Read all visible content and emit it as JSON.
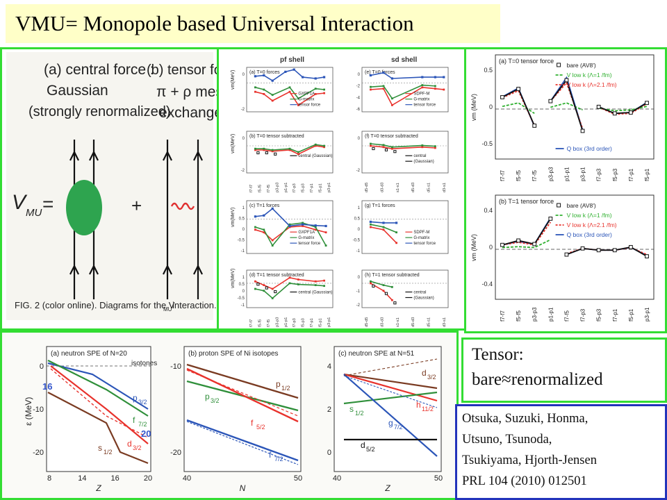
{
  "title": "VMU= Monopole based Universal Interaction",
  "diagram": {
    "label_a": "(a) central force :",
    "label_a2": "Gaussian",
    "label_a3": "(strongly renormalized)",
    "label_b": "(b)  tensor force :",
    "label_b2": "π +  ρ meson",
    "label_b3": "exchange",
    "vmu": "V",
    "vmu_sub": "MU",
    "equals": "=",
    "plus": "+",
    "caption": "FIG. 2 (color online).   Diagrams for the V",
    "caption_sub": "MU",
    "caption_end": " interaction."
  },
  "shell_panel": {
    "col1": "pf shell",
    "col2": "sd shell",
    "ylabel": "v",
    "ylabel_sub": "m",
    "ylabel_unit": "(MeV)",
    "subplots": [
      {
        "label": "(a) T=0 forces",
        "legend": [
          "GXPF1A",
          "G-matrix",
          "tensor force"
        ]
      },
      {
        "label": "(e) T=0 forces",
        "legend": [
          "SDPF-M",
          "G-matrix",
          "tensor force"
        ]
      },
      {
        "label": "(b) T=0 tensor subtracted",
        "legend": [
          "central (Gaussian)"
        ]
      },
      {
        "label": "(f) T=0 tensor subtracted",
        "legend": [
          "central",
          "(Gaussian)"
        ]
      },
      {
        "label": "(c) T=1 forces",
        "legend": [
          "GXPF1A",
          "G-matrix",
          "tensor force"
        ]
      },
      {
        "label": "(g) T=1 forces",
        "legend": [
          "SDPF-M",
          "G-matrix",
          "tensor force"
        ]
      },
      {
        "label": "(d) T=1 tensor subtracted",
        "legend": [
          "central (Gaussian)"
        ]
      },
      {
        "label": "(h) T=1 tensor subtracted",
        "legend": [
          "central",
          "(Gaussian)"
        ]
      }
    ],
    "ticks_a": [
      "0",
      "-2"
    ],
    "ticks_e": [
      "0",
      "-2",
      "-4",
      "-6"
    ],
    "ticks_c": [
      "1",
      "0.5",
      "0",
      "-0.5",
      "-1"
    ],
    "ticks_g": [
      "0",
      "-1",
      "-2"
    ],
    "xlabels_pf": [
      "f7-f7",
      "f5-f5",
      "f7-f5",
      "p3-p3",
      "p1-p1",
      "f7-p3",
      "f5-p3",
      "f7-p1",
      "f5-p1",
      "p3-p1"
    ],
    "xlabels_sd": [
      "d5-d5",
      "d3-d3",
      "s1-s1",
      "d5-d3",
      "d5-s1",
      "d3-s1"
    ]
  },
  "tensor_panel": {
    "top_label": "(a) T=0 tensor force",
    "bottom_label": "(b) T=1 tensor force",
    "ylabel": "v",
    "ylabel_sub": "m",
    "ylabel_unit": "(MeV)",
    "ylabel_unit_b": "(MeV)",
    "legend": [
      "bare (AV8')",
      "V",
      "V",
      "Q",
      "(3rd order)"
    ],
    "legend_vlowk": "low k",
    "legend_l1": "(Λ=1 /fm)",
    "legend_l21": "(Λ=2.1 /fm)",
    "legend_qbox": "box",
    "ticks_top": [
      "0.5",
      "0",
      "-0.5"
    ],
    "ticks_bottom": [
      "0.4",
      "0",
      "-0.4"
    ],
    "xlabels_top": [
      "f7-f7",
      "f5-f5",
      "f7-f5",
      "p3-p3",
      "p1-p1",
      "p3-p1",
      "f7-p3",
      "f5-p3",
      "f7-p1",
      "f5-p1"
    ],
    "xlabels_bottom": [
      "f7-f7",
      "f5-f5",
      "p3-p3",
      "p1-p1",
      "f7-f5",
      "f7-p3",
      "f5-p3",
      "f7-p1",
      "f5-p1",
      "p3-p1"
    ]
  },
  "spe_panel": {
    "a_title": "(a) neutron SPE of N=20",
    "a_title2": "isotones",
    "b_title": "(b) proton SPE of Ni isotopes",
    "c_title": "(c) neutron SPE at N=51",
    "ylabel": "ε (MeV)",
    "a_yticks": [
      "0",
      "-10",
      "-20"
    ],
    "b_yticks": [
      "-10",
      "-20"
    ],
    "c_yticks": [
      "4",
      "2",
      "0"
    ],
    "a_xticks": [
      "8",
      "14",
      "16",
      "20"
    ],
    "b_xticks": [
      "40",
      "50"
    ],
    "c_xticks": [
      "40",
      "50"
    ],
    "a_xlabel": "Z",
    "b_xlabel": "N",
    "c_xlabel": "Z",
    "marker_16": "16",
    "marker_20": "20",
    "a_orbitals": [
      {
        "name": "p",
        "sub": "3/2"
      },
      {
        "name": "f",
        "sub": "7/2"
      },
      {
        "name": "d",
        "sub": "3/2"
      },
      {
        "name": "s",
        "sub": "1/2"
      }
    ],
    "b_orbitals": [
      {
        "name": "p",
        "sub": "1/2"
      },
      {
        "name": "p",
        "sub": "3/2"
      },
      {
        "name": "f",
        "sub": "5/2"
      },
      {
        "name": "f",
        "sub": "7/2"
      }
    ],
    "c_orbitals": [
      {
        "name": "d",
        "sub": "3/2"
      },
      {
        "name": "h",
        "sub": "11/2"
      },
      {
        "name": "s",
        "sub": "1/2"
      },
      {
        "name": "g",
        "sub": "7/2"
      },
      {
        "name": "d",
        "sub": "5/2"
      }
    ]
  },
  "tensor_note": {
    "line1": "Tensor:",
    "line2": "bare≈renormalized"
  },
  "reference": {
    "line1": "Otsuka, Suzuki, Honma,",
    "line2": "Utsuno, Tsunoda,",
    "line3": "Tsukiyama, Hjorth-Jensen",
    "line4": "PRL 104 (2010) 012501"
  },
  "colors": {
    "frame_green": "#33dd33",
    "title_bg": "#ffffc8",
    "reference_border": "#2233bb",
    "red": "#e8322c",
    "green": "#2f8f3a",
    "blue": "#2b55b8",
    "brown": "#7a3b22",
    "marker_blue": "#3355cc"
  }
}
